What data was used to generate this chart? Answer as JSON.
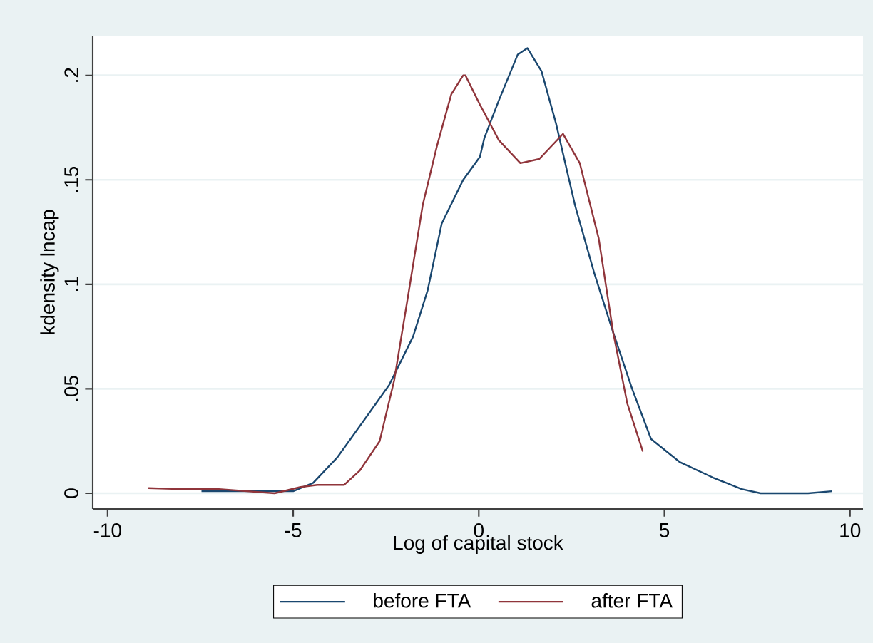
{
  "chart_data": {
    "type": "line",
    "xlabel": "Log of capital stock",
    "ylabel": "kdensity lncap",
    "xlim": [
      -10.4,
      10.35
    ],
    "ylim": [
      -0.0075,
      0.219
    ],
    "xticks": [
      -10,
      -5,
      0,
      5,
      10
    ],
    "yticks": [
      0,
      {
        "value": 0.05,
        "label": ".05"
      },
      {
        "value": 0.1,
        "label": ".1"
      },
      {
        "value": 0.15,
        "label": ".15"
      },
      {
        "value": 0.2,
        "label": ".2"
      }
    ],
    "grid": "y",
    "legend": "bottom",
    "marker": "none",
    "line_style": "solid",
    "series": [
      {
        "name": "before FTA",
        "color": "#1a476f",
        "x": [
          -7.47,
          -6,
          -5,
          -4.46,
          -3.82,
          -3.05,
          -2.41,
          -1.77,
          -1.38,
          -1.0,
          -0.42,
          0.03,
          0.15,
          0.54,
          1.05,
          1.31,
          1.69,
          2.08,
          2.59,
          3.1,
          3.62,
          4.13,
          4.64,
          5.41,
          6.31,
          7.08,
          7.59,
          8.87,
          9.51
        ],
        "values": [
          0.001,
          0.001,
          0.001,
          0.005,
          0.017,
          0.036,
          0.052,
          0.075,
          0.097,
          0.129,
          0.15,
          0.161,
          0.17,
          0.188,
          0.21,
          0.213,
          0.202,
          0.177,
          0.138,
          0.106,
          0.077,
          0.05,
          0.026,
          0.015,
          0.0075,
          0.002,
          0,
          0,
          0.001
        ]
      },
      {
        "name": "after FTA",
        "color": "#90353b",
        "x": [
          -8.9,
          -8.1,
          -7,
          -5.5,
          -4.8,
          -4.35,
          -3.63,
          -3.2,
          -2.67,
          -2.28,
          -1.9,
          -1.51,
          -1.13,
          -0.74,
          -0.42,
          -0.36,
          0.03,
          0.54,
          1.12,
          1.63,
          2.27,
          2.72,
          3.23,
          3.62,
          4.0,
          4.42
        ],
        "values": [
          0.0025,
          0.002,
          0.002,
          0,
          0.003,
          0.004,
          0.004,
          0.011,
          0.025,
          0.054,
          0.095,
          0.138,
          0.166,
          0.191,
          0.2,
          0.2,
          0.186,
          0.169,
          0.158,
          0.16,
          0.172,
          0.158,
          0.122,
          0.077,
          0.043,
          0.02
        ]
      }
    ]
  }
}
